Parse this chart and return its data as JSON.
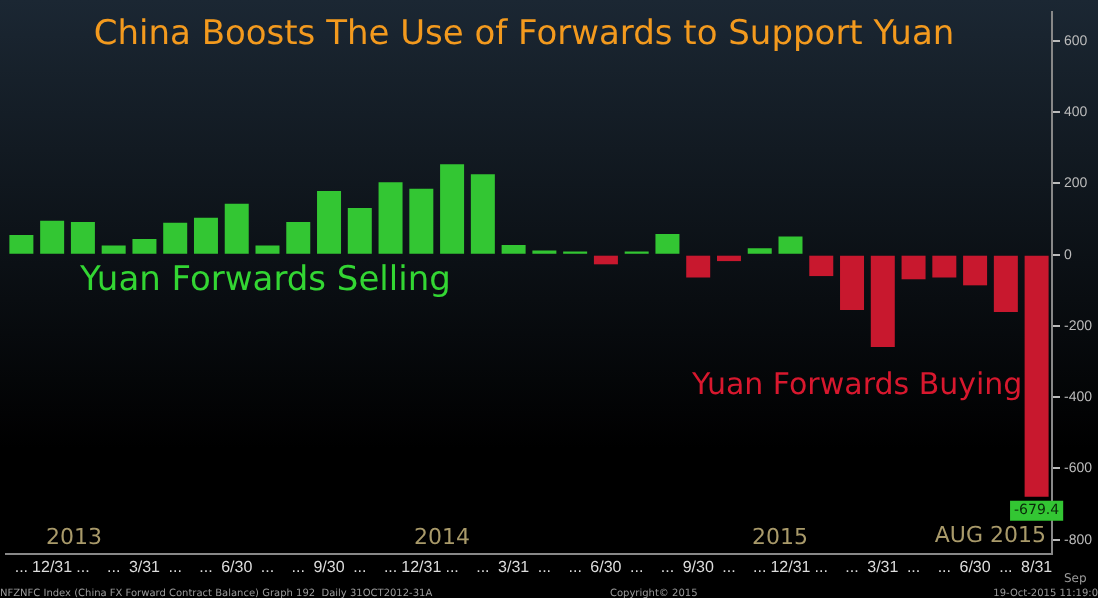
{
  "chart_data": {
    "type": "bar",
    "title": "China Boosts The Use of Forwards to Support Yuan",
    "categories": [
      "...",
      "12/31",
      "...",
      "...",
      "3/31",
      "...",
      "...",
      "6/30",
      "...",
      "...",
      "9/30",
      "...",
      "...",
      "12/31",
      "...",
      "...",
      "3/31",
      "...",
      "...",
      "6/30",
      "...",
      "...",
      "9/30",
      "...",
      "...",
      "12/31",
      "...",
      "...",
      "3/31",
      "...",
      "...",
      "6/30",
      "...",
      "8/31"
    ],
    "values": [
      55,
      95,
      92,
      26,
      44,
      90,
      104,
      143,
      26,
      92,
      179,
      131,
      203,
      185,
      254,
      226,
      27,
      12,
      9,
      -27,
      9,
      58,
      -64,
      -18,
      18,
      51,
      -60,
      -155,
      -259,
      -69,
      -64,
      -86,
      -161,
      -679.4
    ],
    "colors": [
      "#33c633",
      "#33c633",
      "#33c633",
      "#33c633",
      "#33c633",
      "#33c633",
      "#33c633",
      "#33c633",
      "#33c633",
      "#33c633",
      "#33c633",
      "#33c633",
      "#33c633",
      "#33c633",
      "#33c633",
      "#33c633",
      "#33c633",
      "#33c633",
      "#33c633",
      "#c8182e",
      "#33c633",
      "#33c633",
      "#c8182e",
      "#c8182e",
      "#33c633",
      "#33c633",
      "#c8182e",
      "#c8182e",
      "#c8182e",
      "#c8182e",
      "#c8182e",
      "#c8182e",
      "#c8182e",
      "#c8182e"
    ],
    "value_labels": [
      null,
      null,
      null,
      null,
      null,
      null,
      null,
      null,
      null,
      null,
      null,
      null,
      null,
      null,
      null,
      null,
      null,
      null,
      null,
      null,
      null,
      null,
      null,
      null,
      null,
      null,
      null,
      null,
      null,
      null,
      null,
      null,
      null,
      "-679.4"
    ],
    "ylim": [
      -840,
      680
    ],
    "yticks": [
      -800,
      -600,
      -400,
      -200,
      0,
      200,
      400,
      600
    ],
    "grid": false,
    "legend": false,
    "annotations": [
      "Yuan Forwards Selling",
      "Yuan Forwards Buying",
      "2013",
      "2014",
      "2015",
      "AUG 2015",
      "Sep",
      "NFZNFC Index (China FX Forward Contract Balance) Graph 192  Daily 31OCT2012-31A",
      "Copyright© 2015",
      "19-Oct-2015 11:19:0"
    ]
  }
}
